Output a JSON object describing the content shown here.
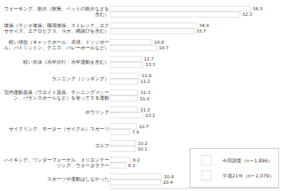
{
  "chart_data": {
    "type": "bar",
    "orientation": "horizontal",
    "categories": [
      "ウオーキング、散歩（散策、ペットの散歩などを\n含む）",
      "体操（ラジオ体操、職場体操、ストレッチ、エク\nササイズ、エアロビクス、ヨガ、縄跳びを含む）",
      "軽い球技（キャッチボール、卓球、ドッジボー\nル、バドミントン、テニス、バレーボールなど）",
      "軽い水泳（水中歩行・水中運動を含む）",
      "ランニング（ジョギング）",
      "室内運動器具（ウエイト器具、ランニングマシー\nン、バランスボールなど）を使ってする運動",
      "ボウリング",
      "サイクリング、モーター（サイクル）スポーツ",
      "ゴルフ",
      "ハイキング、ワンダーフォーゲル、オリエンテー\nリング、ウオータラフー",
      "スポーツや運動はしなかった"
    ],
    "series": [
      {
        "name": "今回調査（n＝1,896）",
        "color": "#555555",
        "values": [
          56.5,
          34.9,
          16.8,
          12.7,
          11.8,
          11.3,
          11.2,
          10.7,
          10.2,
          8.2,
          20.8
        ],
        "value_labels": [
          "56.5",
          "34.9",
          "16.8",
          "12.7",
          "11.8",
          "11.3",
          "11.2",
          "10.7",
          "10.2",
          "8.2",
          "20.8"
        ]
      },
      {
        "name": "平成21年（n＝2,079）",
        "color": "#cccccc",
        "values": [
          52.3,
          33.7,
          18.7,
          13.3,
          11.2,
          11.0,
          13.2,
          7.9,
          10.1,
          6.3,
          20.4
        ],
        "value_labels": [
          "52.3",
          "33.7",
          "18.7",
          "13.3",
          "11.2",
          "11.0",
          "13.2",
          "7.9",
          "10.1",
          "6.3",
          "20.4"
        ]
      }
    ],
    "xlim": [
      0,
      68
    ],
    "tick_labels": "y",
    "data_labels": true,
    "legend": "lower right",
    "grid": false
  }
}
